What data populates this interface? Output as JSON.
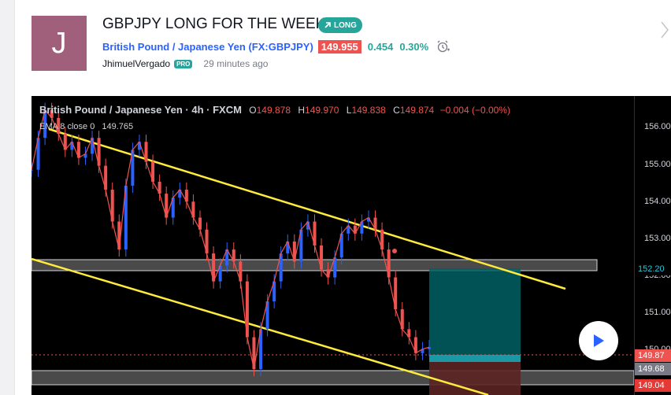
{
  "idea": {
    "avatar_letter": "J",
    "title": "GBPJPY LONG FOR THE WEEK",
    "badge": "LONG",
    "symbol_name": "British Pound / Japanese Yen",
    "symbol_code": "(FX:GBPJPY)",
    "price": "149.955",
    "change": "0.454",
    "change_pct": "0.30%",
    "author": "JhimuelVergado",
    "author_badge": "PRO",
    "time_ago": "29 minutes ago"
  },
  "chart": {
    "header": {
      "symbol": "British Pound / Japanese Yen · 4h · FXCM",
      "o_label": "O",
      "o": "149.878",
      "h_label": "H",
      "h": "149.970",
      "l_label": "L",
      "l": "149.838",
      "c_label": "C",
      "c": "149.874",
      "change": "−0.004 (−0.00%)"
    },
    "ema": {
      "label": "EMA 8 close 0",
      "value": "149.765"
    },
    "axis_ticks": [
      "156.00",
      "155.00",
      "154.00",
      "153.00",
      "151.00"
    ],
    "axis_tick_partial": "150.00",
    "axis_tick_overlap": "152.00",
    "price_tags": [
      "152.20",
      "149.87",
      "149.68",
      "149.04"
    ],
    "colors": {
      "up": "#2962ff",
      "down": "#ef5350",
      "trendline": "#ffeb3b",
      "target_zone": "#00838f",
      "stop_zone": "#7b2a2a",
      "zone_box": "#787b86"
    }
  },
  "chart_data": {
    "type": "line",
    "title": "",
    "series": [
      {
        "name": "",
        "values": [
          154.4,
          155.2,
          155.9,
          155.7,
          155.3,
          154.9,
          155.1,
          154.7,
          154.8,
          155.2,
          154.5,
          153.9,
          153.1,
          152.4,
          154.0,
          154.9,
          155.1,
          154.6,
          154.1,
          153.8,
          153.2,
          153.7,
          153.9,
          153.6,
          153.2,
          152.9,
          152.3,
          151.6,
          152.0,
          152.4,
          152.1,
          151.6,
          150.2,
          149.4,
          150.4,
          151.1,
          151.6,
          152.3,
          152.6,
          152.1,
          152.9,
          153.1,
          152.5,
          151.9,
          151.7,
          152.2,
          152.8,
          153.0,
          152.8,
          153.1,
          153.2,
          152.9,
          152.4,
          151.7,
          150.9,
          150.4,
          150.2,
          149.8,
          149.9,
          149.95
        ]
      }
    ],
    "y_range": [
      148.75,
      156.25
    ]
  }
}
